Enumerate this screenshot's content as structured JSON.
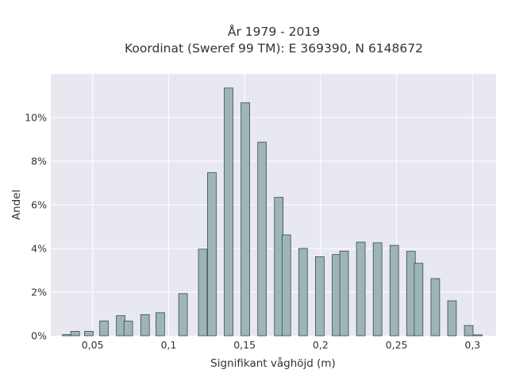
{
  "chart_data": {
    "type": "bar",
    "title_line1": "År 1979 - 2019",
    "title_line2": "Koordinat (Sweref 99 TM): E 369390, N 6148672",
    "xlabel": "Signifikant våghöjd (m)",
    "ylabel": "Andel",
    "x_ticks": [
      {
        "value": 0.05,
        "label": "0,05"
      },
      {
        "value": 0.1,
        "label": "0,1"
      },
      {
        "value": 0.15,
        "label": "0,15"
      },
      {
        "value": 0.2,
        "label": "0,2"
      },
      {
        "value": 0.25,
        "label": "0,25"
      },
      {
        "value": 0.3,
        "label": "0,3"
      }
    ],
    "y_ticks": [
      {
        "value": 0,
        "label": "0%"
      },
      {
        "value": 2,
        "label": "2%"
      },
      {
        "value": 4,
        "label": "4%"
      },
      {
        "value": 6,
        "label": "6%"
      },
      {
        "value": 8,
        "label": "8%"
      },
      {
        "value": 10,
        "label": "10%"
      }
    ],
    "xlim": [
      0.0225,
      0.3155
    ],
    "ylim": [
      0,
      12
    ],
    "bar_width": 0.0057,
    "grid": true,
    "background": "#e8e8f0",
    "bar_color": "#9db5b5",
    "bar_edge_color": "#3b4a4a",
    "x": [
      0.033,
      0.0385,
      0.0475,
      0.0575,
      0.0685,
      0.0735,
      0.0845,
      0.0945,
      0.1095,
      0.1225,
      0.1285,
      0.1395,
      0.1505,
      0.1615,
      0.1725,
      0.1775,
      0.1885,
      0.1995,
      0.2105,
      0.2155,
      0.2265,
      0.2375,
      0.2485,
      0.2595,
      0.2645,
      0.2755,
      0.2865,
      0.2975,
      0.3035
    ],
    "values": [
      0.05,
      0.2,
      0.2,
      0.68,
      0.92,
      0.67,
      0.97,
      1.06,
      1.93,
      3.97,
      7.47,
      11.35,
      10.68,
      8.87,
      6.34,
      4.62,
      4.0,
      3.62,
      3.72,
      3.88,
      4.29,
      4.26,
      4.14,
      3.87,
      3.32,
      2.62,
      1.6,
      0.47,
      0.04
    ]
  }
}
